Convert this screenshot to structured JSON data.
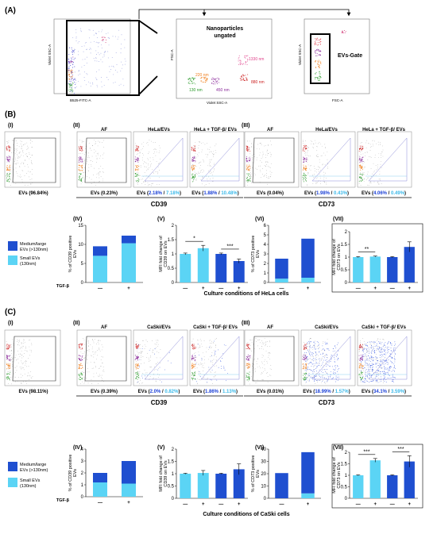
{
  "panels": {
    "A": "(A)",
    "B": "(B)",
    "C": "(C)",
    "i": "(I)",
    "ii": "(II)",
    "iii": "(III)",
    "iv": "(IV)",
    "v": "(V)",
    "vi": "(VI)",
    "vii": "(VII)"
  },
  "section_a": {
    "plot1": {
      "xlabel": "B525-FITC-A",
      "ylabel": "Violet SSC-A"
    },
    "plot2": {
      "title1": "Nanoparticles",
      "title2": "ungated",
      "xlabel": "Violet SSC-A",
      "ylabel": "FSC-A",
      "beads": [
        {
          "label": "1330 nm",
          "color": "#e0408a"
        },
        {
          "label": "880 nm",
          "color": "#cc2222"
        },
        {
          "label": "220 nm",
          "color": "#f08020"
        },
        {
          "label": "130 nm",
          "color": "#2a9a2a"
        },
        {
          "label": "450 nm",
          "color": "#8a2a9a"
        }
      ]
    },
    "plot3": {
      "title": "EVs-Gate",
      "xlabel": "FSC-A",
      "ylabel": "Violet SSC-A"
    }
  },
  "section_b": {
    "scatter_labels": {
      "i": "EVs (96.84%)",
      "ii_af": "EVs (0.23%)",
      "ii_hela_pre": "EVs (",
      "ii_hela_a": "2.18%",
      "ii_hela_sep": " / ",
      "ii_hela_b": "7.18%",
      "ii_hela_post": ")",
      "ii_tgf_pre": "EVs (",
      "ii_tgf_a": "1.88%",
      "ii_tgf_sep": " / ",
      "ii_tgf_b": "10.48%",
      "ii_tgf_post": ")",
      "iii_af": "EVs (0.04%)",
      "iii_hela_pre": "EVs (",
      "iii_hela_a": "1.98%",
      "iii_hela_sep": " / ",
      "iii_hela_b": "0.43%",
      "iii_hela_post": ")",
      "iii_tgf_pre": "EVs (",
      "iii_tgf_a": "4.06%",
      "iii_tgf_sep": " / ",
      "iii_tgf_b": "0.49%",
      "iii_tgf_post": ")"
    },
    "titles": {
      "af": "AF",
      "hela": "HeLa/EVs",
      "hela_tgf": "HeLa + TGF-β/ EVs"
    },
    "marker_cd39": "CD39",
    "marker_cd73": "CD73",
    "legend": {
      "medium": "Medium/large\nEVs (>130nm)",
      "small": "Small EVs\n(130nm)"
    },
    "tgf_label": "TGF-β",
    "minus": "—",
    "plus": "+",
    "culture_label": "Culture conditions of HeLa cells"
  },
  "section_c": {
    "scatter_labels": {
      "i": "EVs (98.11%)",
      "ii_af": "EVs (0.39%)",
      "ii_cas_pre": "EVs (",
      "ii_cas_a": "2.0%",
      "ii_cas_sep": " / ",
      "ii_cas_b": "0.82%",
      "ii_cas_post": ")",
      "ii_tgf_pre": "EVs (",
      "ii_tgf_a": "1.86%",
      "ii_tgf_sep": " / ",
      "ii_tgf_b": "1.13%",
      "ii_tgf_post": ")",
      "iii_af": "EVs (0.01%)",
      "iii_cas_pre": "EVs (",
      "iii_cas_a": "18.99%",
      "iii_cas_sep": " / ",
      "iii_cas_b": "1.57%",
      "iii_cas_post": ")",
      "iii_tgf_pre": "EVs (",
      "iii_tgf_a": "34.1%",
      "iii_tgf_sep": " / ",
      "iii_tgf_b": "3.59%",
      "iii_tgf_post": ")"
    },
    "titles": {
      "af": "AF",
      "caski": "CaSki/EVs",
      "caski_tgf": "CaSki + TGF-β/ EVs"
    },
    "marker_cd39": "CD39",
    "marker_cd73": "CD73",
    "legend": {
      "medium": "Medium/large\nEVs (>130nm)",
      "small": "Small EVs\n(130nm)"
    },
    "tgf_label": "TGF-β",
    "minus": "—",
    "plus": "+",
    "culture_label": "Culture conditions of CaSki cells"
  },
  "colors": {
    "dark_blue": "#1f4fd0",
    "light_blue": "#5bd4f5",
    "text_blue": "#1a3fd6",
    "text_cyan": "#3ab8e8"
  },
  "chart_data": [
    {
      "id": "B-IV",
      "type": "bar",
      "stacked": true,
      "ylabel": "% of CD39 positive EVs",
      "ylim": [
        0,
        15
      ],
      "yticks": [
        0,
        5,
        10,
        15
      ],
      "categories": [
        "—",
        "+"
      ],
      "series": [
        {
          "name": "Small EVs (130nm)",
          "values": [
            7.0,
            10.3
          ]
        },
        {
          "name": "Medium/large EVs (>130nm)",
          "values": [
            2.5,
            2.0
          ]
        }
      ]
    },
    {
      "id": "B-V",
      "type": "bar",
      "ylabel": "MFI fold change of CD39 on EVs",
      "ylim": [
        0,
        2
      ],
      "yticks": [
        0,
        0.5,
        1,
        1.5,
        2
      ],
      "categories": [
        "—",
        "+",
        "—",
        "+"
      ],
      "values": [
        1.0,
        1.2,
        1.0,
        0.75
      ],
      "errors": [
        0.03,
        0.1,
        0.03,
        0.07
      ],
      "annotations": [
        "*",
        "***"
      ]
    },
    {
      "id": "B-VI",
      "type": "bar",
      "stacked": true,
      "ylabel": "% of CD73 positive EVs",
      "ylim": [
        0,
        6
      ],
      "yticks": [
        0,
        1,
        2,
        3,
        4,
        5,
        6
      ],
      "categories": [
        "—",
        "+"
      ],
      "series": [
        {
          "name": "Small EVs (130nm)",
          "values": [
            0.4,
            0.5
          ]
        },
        {
          "name": "Medium/large EVs (>130nm)",
          "values": [
            2.1,
            4.1
          ]
        }
      ]
    },
    {
      "id": "B-VII",
      "type": "bar",
      "ylabel": "MFI fold change of CD73 on EVs",
      "ylim": [
        0,
        2
      ],
      "yticks": [
        0,
        0.5,
        1,
        1.5,
        2
      ],
      "categories": [
        "—",
        "+",
        "—",
        "+"
      ],
      "values": [
        1.0,
        1.02,
        1.0,
        1.4
      ],
      "errors": [
        0.02,
        0.02,
        0.02,
        0.2
      ],
      "annotations": [
        "**"
      ]
    },
    {
      "id": "C-IV",
      "type": "bar",
      "stacked": true,
      "ylabel": "% of CD39 positive EVs",
      "ylim": [
        0,
        4
      ],
      "yticks": [
        0,
        1,
        2,
        3,
        4
      ],
      "categories": [
        "—",
        "+"
      ],
      "series": [
        {
          "name": "Small EVs (130nm)",
          "values": [
            1.2,
            1.1
          ]
        },
        {
          "name": "Medium/large EVs (>130nm)",
          "values": [
            0.8,
            1.9
          ]
        }
      ]
    },
    {
      "id": "C-V",
      "type": "bar",
      "ylabel": "MFI fold change of CD39 on EVs",
      "ylim": [
        0,
        2
      ],
      "yticks": [
        0,
        0.5,
        1,
        1.5,
        2
      ],
      "categories": [
        "—",
        "+",
        "—",
        "+"
      ],
      "values": [
        1.0,
        1.03,
        1.0,
        1.18
      ],
      "errors": [
        0.02,
        0.1,
        0.02,
        0.22
      ]
    },
    {
      "id": "C-VI",
      "type": "bar",
      "stacked": true,
      "ylabel": "% of CD73 positive EVs",
      "ylim": [
        0,
        40
      ],
      "yticks": [
        0,
        10,
        20,
        30,
        40
      ],
      "categories": [
        "—",
        "+"
      ],
      "series": [
        {
          "name": "Small EVs (130nm)",
          "values": [
            0.0,
            4.0
          ]
        },
        {
          "name": "Medium/large EVs (>130nm)",
          "values": [
            20.5,
            33.5
          ]
        }
      ]
    },
    {
      "id": "C-VII",
      "type": "bar",
      "ylabel": "MFI fold change of CD73 on EVs",
      "ylim": [
        0,
        2
      ],
      "yticks": [
        0,
        0.5,
        1,
        1.5,
        2
      ],
      "categories": [
        "—",
        "+",
        "—",
        "+"
      ],
      "values": [
        1.0,
        1.65,
        1.0,
        1.6
      ],
      "errors": [
        0.02,
        0.08,
        0.02,
        0.25
      ],
      "annotations": [
        "***",
        "***"
      ]
    }
  ]
}
